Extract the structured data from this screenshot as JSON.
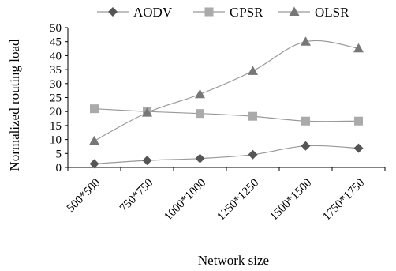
{
  "chart_data": {
    "type": "line",
    "title": "",
    "xlabel": "Network size",
    "ylabel": "Normalized routing load",
    "categories": [
      "500*500",
      "750*750",
      "1000*1000",
      "1250*1250",
      "1500*1500",
      "1750*1750"
    ],
    "ylim": [
      0,
      50
    ],
    "yticks": [
      0,
      5,
      10,
      15,
      20,
      25,
      30,
      35,
      40,
      45,
      50
    ],
    "grid": false,
    "legend_position": "top",
    "series": [
      {
        "name": "AODV",
        "marker": "diamond",
        "color": "#555555",
        "values": [
          1.3,
          2.5,
          3.2,
          4.6,
          7.7,
          6.9
        ]
      },
      {
        "name": "GPSR",
        "marker": "square",
        "color": "#aaaaaa",
        "values": [
          21.0,
          20.0,
          19.3,
          18.3,
          16.6,
          16.6
        ]
      },
      {
        "name": "OLSR",
        "marker": "triangle",
        "color": "#777777",
        "values": [
          9.5,
          19.6,
          26.2,
          34.5,
          45.0,
          42.6
        ]
      }
    ]
  }
}
